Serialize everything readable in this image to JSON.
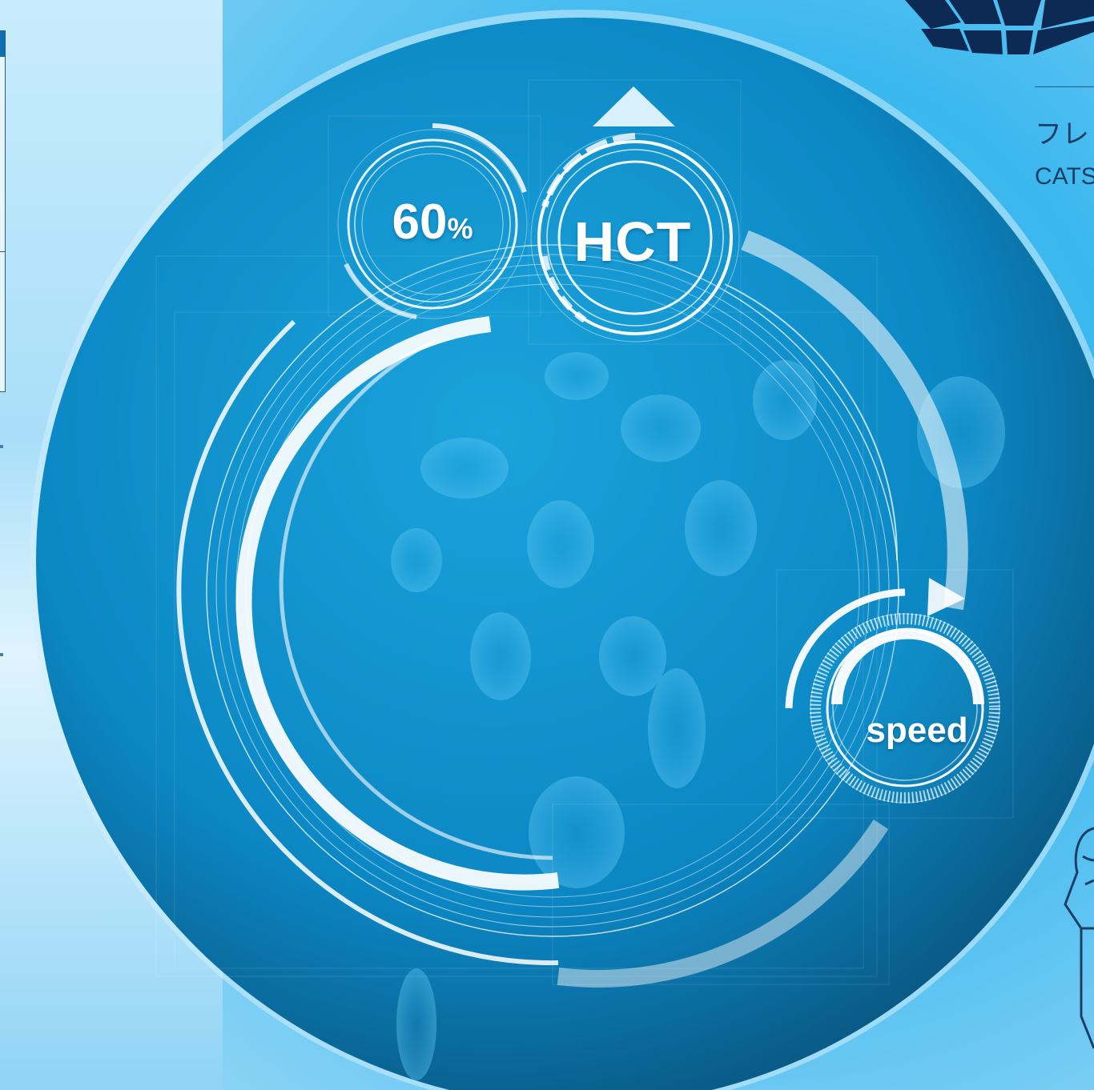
{
  "gauges": {
    "percent_value": "60",
    "percent_unit": "%",
    "hct_label": "HCT",
    "speed_label": "speed"
  },
  "side_panel": {
    "line1": "フレ",
    "line2": "CATS"
  },
  "icons": {
    "up_arrow": "triangle-up-icon",
    "logo": "globe-grid-logo",
    "device": "device-outline-icon"
  },
  "colors": {
    "disc_center": "#1aa3dc",
    "disc_edge": "#0a4a70",
    "ring_white": "#ffffff",
    "logo_navy": "#0d2a55",
    "text_navy": "#1d3e66"
  }
}
